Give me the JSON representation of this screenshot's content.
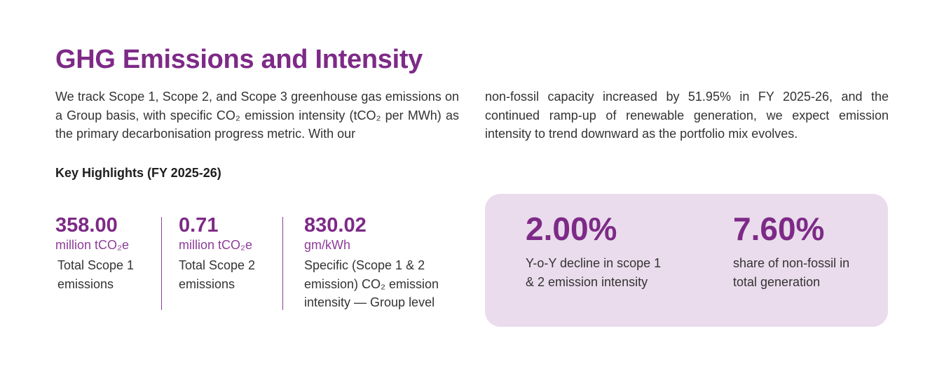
{
  "page": {
    "title": "GHG Emissions and Intensity",
    "intro_left": "We track Scope 1, Scope 2, and Scope 3 greenhouse gas emissions on a Group basis, with specific CO₂ emission intensity (tCO₂ per MWh) as the primary decarbonisation progress metric. With our",
    "intro_right": "non-fossil capacity increased by 51.95% in FY 2025-26, and the continued ramp-up of renewable generation, we expect emission intensity to trend downward as the portfolio mix evolves."
  },
  "highlights": {
    "heading": "Key Highlights (FY 2025-26)",
    "stats": [
      {
        "value": "358.00",
        "unit": "million tCO₂e",
        "label": "Total Scope 1 emissions"
      },
      {
        "value": "0.71",
        "unit": "million tCO₂e",
        "label": "Total Scope 2 emissions"
      },
      {
        "value": "830.02",
        "unit": "gm/kWh",
        "label": "Specific (Scope 1 & 2 emission) CO₂ emission intensity — Group level"
      }
    ]
  },
  "callout": {
    "stats": [
      {
        "value": "2.00%",
        "label": "Y-o-Y decline in scope 1 & 2 emission intensity"
      },
      {
        "value": "7.60%",
        "label": "share of non-fossil in total generation"
      }
    ]
  },
  "colors": {
    "accent": "#7d2a87",
    "callout_background": "#eadcec",
    "body_text": "#333333"
  }
}
